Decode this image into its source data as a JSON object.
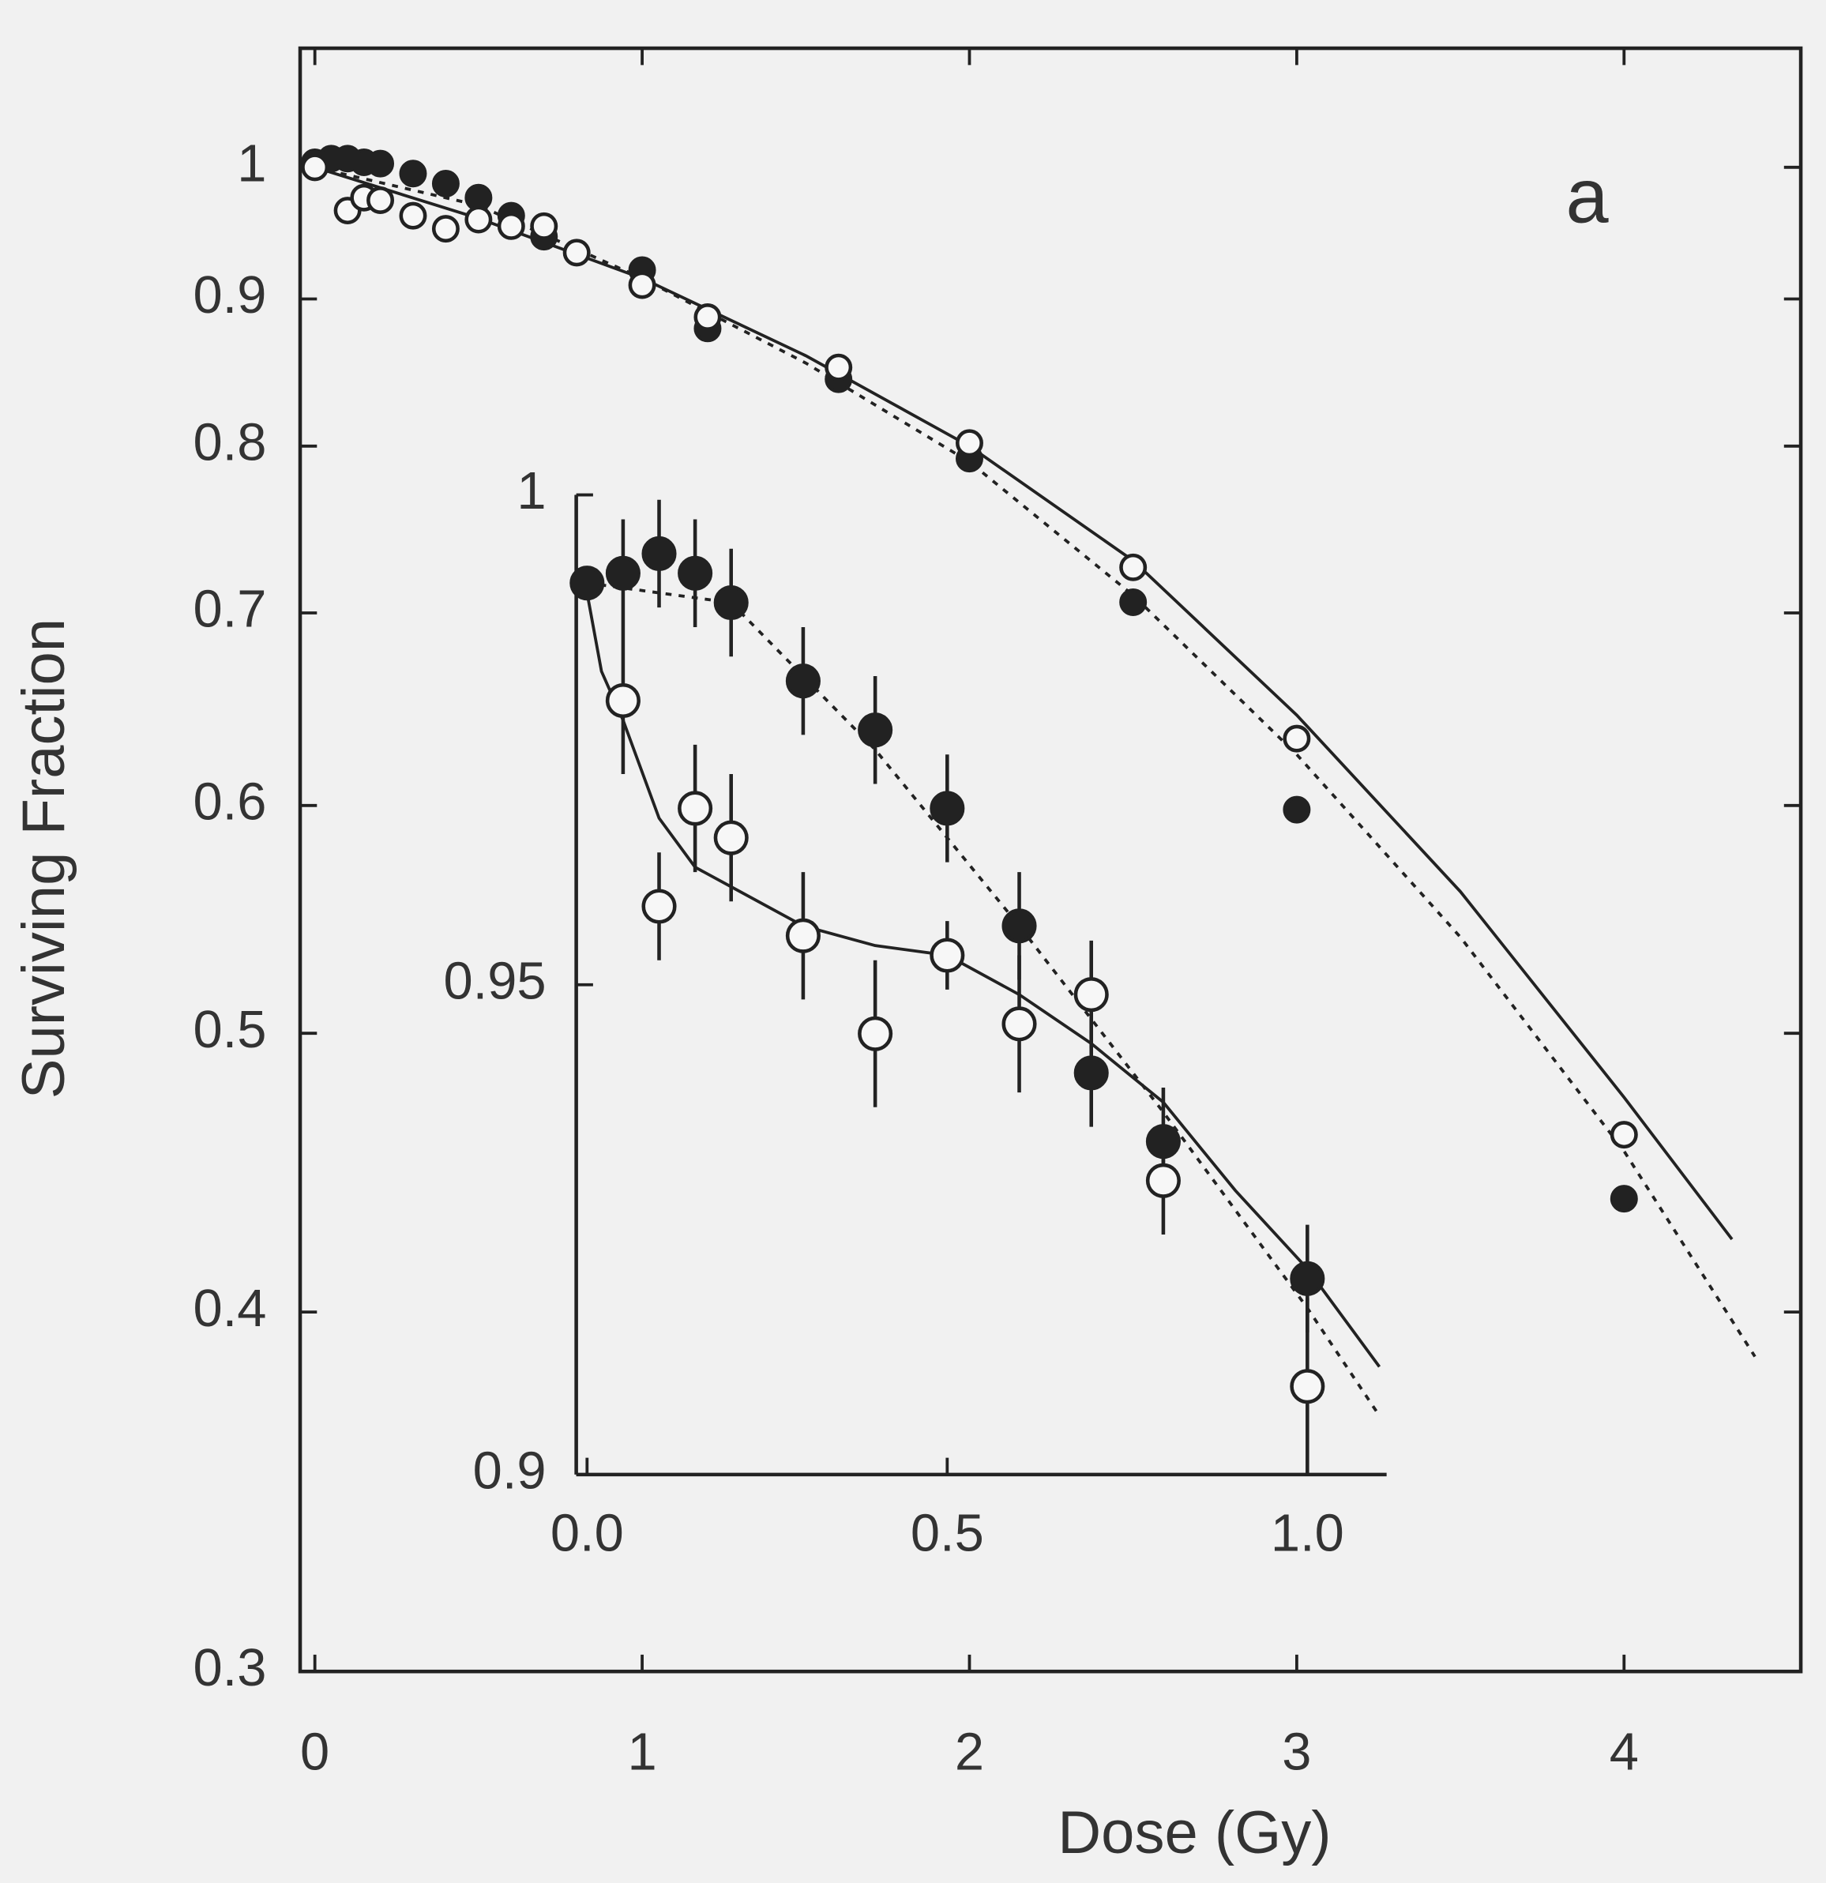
{
  "chart_data": [
    {
      "type": "scatter",
      "label": "a",
      "x_label": "Dose (Gy)",
      "y_label": "Surviving Fraction",
      "xlim": [
        -0.045,
        4.54
      ],
      "xticks": [
        0,
        1,
        2,
        3,
        4
      ],
      "ylim": [
        0.3,
        1.1
      ],
      "ylog": true,
      "yticks": [
        0.3,
        0.4,
        0.5,
        0.6,
        0.7,
        0.8,
        0.9,
        1
      ],
      "color": "#222222",
      "series": [
        {
          "marker": "filled",
          "x": [
            0,
            0.05,
            0.1,
            0.15,
            0.2,
            0.3,
            0.4,
            0.5,
            0.6,
            0.7,
            1.0,
            1.2,
            1.6,
            2.0,
            2.5,
            3.0,
            4.0
          ],
          "values": [
            1.004,
            1.007,
            1.007,
            1.004,
            1.003,
            0.995,
            0.987,
            0.976,
            0.962,
            0.946,
            0.921,
            0.879,
            0.844,
            0.792,
            0.706,
            0.598,
            0.438
          ]
        },
        {
          "marker": "open",
          "x": [
            0,
            0.1,
            0.15,
            0.2,
            0.3,
            0.4,
            0.5,
            0.6,
            0.7,
            0.8,
            1.0,
            1.2,
            1.6,
            2.0,
            2.5,
            3.0,
            4.0
          ],
          "values": [
            1.0,
            0.966,
            0.976,
            0.974,
            0.962,
            0.952,
            0.959,
            0.954,
            0.954,
            0.934,
            0.91,
            0.887,
            0.852,
            0.802,
            0.726,
            0.633,
            0.461
          ]
        },
        {
          "line": "solid",
          "x": [
            0,
            0.5,
            1,
            1.5,
            2,
            2.5,
            3,
            3.5,
            4,
            4.33
          ],
          "values": [
            1.0,
            0.96,
            0.915,
            0.86,
            0.8,
            0.73,
            0.645,
            0.56,
            0.475,
            0.424
          ]
        },
        {
          "line": "dotted",
          "x": [
            0,
            0.5,
            1,
            1.5,
            2,
            2.5,
            3,
            3.5,
            4,
            4.4
          ],
          "values": [
            1.0,
            0.97,
            0.915,
            0.855,
            0.79,
            0.71,
            0.625,
            0.54,
            0.455,
            0.386
          ]
        }
      ]
    },
    {
      "type": "scatter",
      "xlim": [
        -0.015,
        1.11
      ],
      "xticks": [
        {
          "value": 0,
          "label": "0.0"
        },
        {
          "value": 0.5,
          "label": "0.5"
        },
        {
          "value": 1,
          "label": "1.0"
        }
      ],
      "ylim": [
        0.9,
        1
      ],
      "yticks": [
        0.9,
        0.95,
        1
      ],
      "color": "#222222",
      "series": [
        {
          "marker": "filled",
          "x": [
            0,
            0.05,
            0.1,
            0.15,
            0.2,
            0.3,
            0.4,
            0.5,
            0.6,
            0.7,
            0.8,
            1.0
          ],
          "values": [
            0.991,
            0.992,
            0.994,
            0.992,
            0.989,
            0.981,
            0.976,
            0.968,
            0.956,
            0.941,
            0.934,
            0.92
          ],
          "errors": [
            0.0,
            0.0055,
            0.0055,
            0.0055,
            0.0055,
            0.0055,
            0.0055,
            0.0055,
            0.0055,
            0.0055,
            0.0055,
            0.0055
          ]
        },
        {
          "marker": "open",
          "x": [
            0.05,
            0.1,
            0.15,
            0.2,
            0.3,
            0.4,
            0.5,
            0.6,
            0.7,
            0.8,
            1.0
          ],
          "values": [
            0.979,
            0.958,
            0.968,
            0.965,
            0.955,
            0.945,
            0.953,
            0.946,
            0.949,
            0.93,
            0.909
          ],
          "errors": [
            0.0075,
            0.0055,
            0.0065,
            0.0065,
            0.0065,
            0.0075,
            0.0035,
            0.007,
            0.0055,
            0.0055,
            0.009
          ]
        },
        {
          "line": "solid",
          "x": [
            0,
            0.02,
            0.05,
            0.1,
            0.15,
            0.2,
            0.3,
            0.4,
            0.5,
            0.6,
            0.7,
            0.8,
            0.9,
            1.0,
            1.1
          ],
          "values": [
            0.99,
            0.982,
            0.977,
            0.967,
            0.962,
            0.96,
            0.956,
            0.954,
            0.953,
            0.949,
            0.944,
            0.938,
            0.929,
            0.921,
            0.911
          ]
        },
        {
          "line": "dotted",
          "x": [
            0,
            0.2,
            0.4,
            0.6,
            0.8,
            1.0,
            1.1
          ],
          "values": [
            0.991,
            0.989,
            0.974,
            0.956,
            0.937,
            0.917,
            0.906
          ]
        }
      ]
    }
  ]
}
